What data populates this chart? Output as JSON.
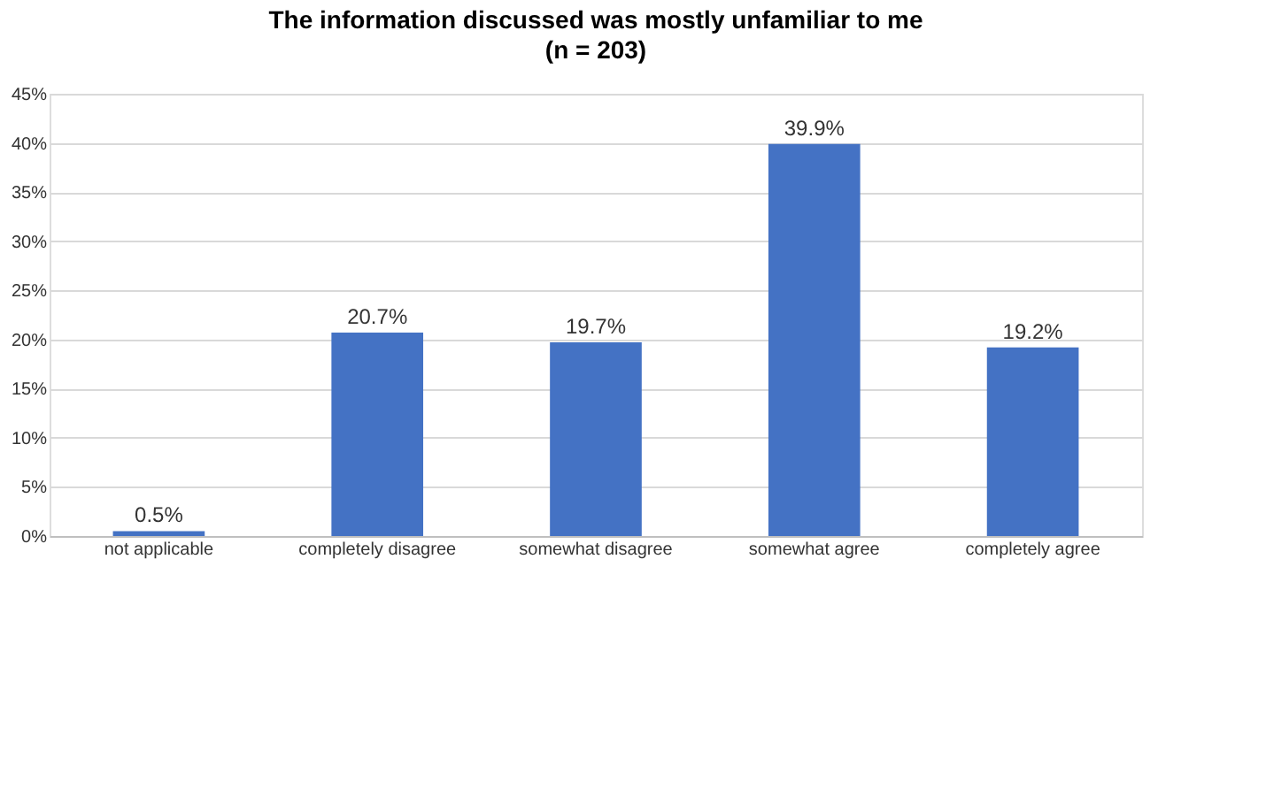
{
  "chart_data": {
    "type": "bar",
    "title": "The information discussed was mostly unfamiliar to me",
    "subtitle": "(n = 203)",
    "categories": [
      "not applicable",
      "completely disagree",
      "somewhat disagree",
      "somewhat agree",
      "completely agree"
    ],
    "values": [
      0.5,
      20.7,
      19.7,
      39.9,
      19.2
    ],
    "value_labels": [
      "0.5%",
      "20.7%",
      "19.7%",
      "39.9%",
      "19.2%"
    ],
    "color": "#4472c4",
    "ylim": [
      0,
      45
    ],
    "yticks": [
      {
        "value": 0,
        "label": "0%"
      },
      {
        "value": 5,
        "label": "5%"
      },
      {
        "value": 10,
        "label": "10%"
      },
      {
        "value": 15,
        "label": "15%"
      },
      {
        "value": 20,
        "label": "20%"
      },
      {
        "value": 25,
        "label": "25%"
      },
      {
        "value": 30,
        "label": "30%"
      },
      {
        "value": 35,
        "label": "35%"
      },
      {
        "value": 40,
        "label": "40%"
      },
      {
        "value": 45,
        "label": "45%"
      }
    ],
    "grid": "y"
  }
}
